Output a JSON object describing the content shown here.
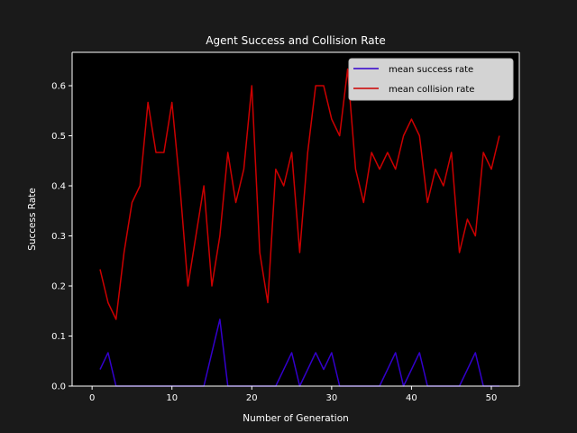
{
  "chart_data": {
    "type": "line",
    "title": "Agent Success and Collision Rate",
    "xlabel": "Number of Generation",
    "ylabel": "Success Rate",
    "xlim": [
      -2.5,
      53.5
    ],
    "ylim": [
      0,
      0.6667
    ],
    "xticks": [
      0,
      10,
      20,
      30,
      40,
      50
    ],
    "xtick_labels": [
      "0",
      "10",
      "20",
      "30",
      "40",
      "50"
    ],
    "yticks": [
      0,
      0.1,
      0.2,
      0.3,
      0.4,
      0.5,
      0.6
    ],
    "ytick_labels": [
      "0.0",
      "0.1",
      "0.2",
      "0.3",
      "0.4",
      "0.5",
      "0.6"
    ],
    "grid": false,
    "legend_position": "top-right",
    "x": [
      1,
      2,
      3,
      4,
      5,
      6,
      7,
      8,
      9,
      10,
      11,
      12,
      13,
      14,
      15,
      16,
      17,
      18,
      19,
      20,
      21,
      22,
      23,
      24,
      25,
      26,
      27,
      28,
      29,
      30,
      31,
      32,
      33,
      34,
      35,
      36,
      37,
      38,
      39,
      40,
      41,
      42,
      43,
      44,
      45,
      46,
      47,
      48,
      49,
      50,
      51
    ],
    "series": [
      {
        "name": "mean success rate",
        "color": "#3300cc",
        "values": [
          0.0333,
          0.0667,
          0,
          0,
          0,
          0,
          0,
          0,
          0,
          0,
          0,
          0,
          0,
          0,
          0.0667,
          0.1333,
          0,
          0,
          0,
          0,
          0,
          0,
          0,
          0.0333,
          0.0667,
          0,
          0.0333,
          0.0667,
          0.0333,
          0.0667,
          0,
          0,
          0,
          0,
          0,
          0,
          0.0333,
          0.0667,
          0,
          0.0333,
          0.0667,
          0,
          0,
          0,
          0,
          0,
          0.0333,
          0.0667,
          0,
          0,
          0
        ]
      },
      {
        "name": "mean collision rate",
        "color": "#cc0000",
        "values": [
          0.2333,
          0.1667,
          0.1333,
          0.2667,
          0.3667,
          0.4,
          0.5667,
          0.4667,
          0.4667,
          0.5667,
          0.4,
          0.2,
          0.3,
          0.4,
          0.2,
          0.3,
          0.4667,
          0.3667,
          0.4333,
          0.6,
          0.2667,
          0.1667,
          0.4333,
          0.4,
          0.4667,
          0.2667,
          0.4667,
          0.6,
          0.6,
          0.5333,
          0.5,
          0.6333,
          0.4333,
          0.3667,
          0.4667,
          0.4333,
          0.4667,
          0.4333,
          0.5,
          0.5333,
          0.5,
          0.3667,
          0.4333,
          0.4,
          0.4667,
          0.2667,
          0.3333,
          0.3,
          0.4667,
          0.4333,
          0.5
        ]
      }
    ]
  }
}
